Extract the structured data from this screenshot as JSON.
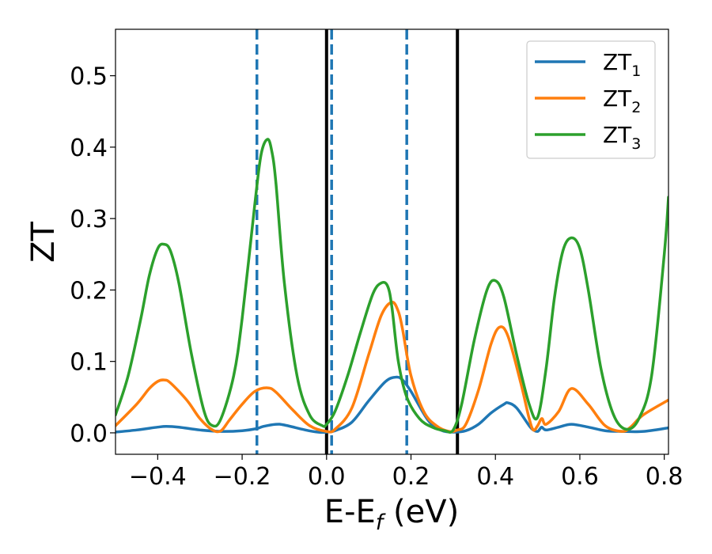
{
  "chart_data": {
    "type": "line",
    "title": "",
    "xlabel": "E-E",
    "xlabel_sub": "f",
    "xlabel_unit": " (eV)",
    "ylabel": "ZT",
    "xlim": [
      -0.5,
      0.81
    ],
    "ylim": [
      -0.03,
      0.565
    ],
    "xticks": [
      -0.4,
      -0.2,
      0.0,
      0.2,
      0.4,
      0.6,
      0.8
    ],
    "xtick_labels": [
      "−0.4",
      "−0.2",
      "0.0",
      "0.2",
      "0.4",
      "0.6",
      "0.8"
    ],
    "yticks": [
      0.0,
      0.1,
      0.2,
      0.3,
      0.4,
      0.5
    ],
    "ytick_labels": [
      "0.0",
      "0.1",
      "0.2",
      "0.3",
      "0.4",
      "0.5"
    ],
    "grid": false,
    "legend_position": "top-right",
    "vlines": [
      {
        "x": 0.0,
        "style": "solid",
        "color": "#000000"
      },
      {
        "x": 0.31,
        "style": "solid",
        "color": "#000000"
      },
      {
        "x": -0.165,
        "style": "dashed",
        "color": "#1f77b4"
      },
      {
        "x": 0.012,
        "style": "dashed",
        "color": "#1f77b4"
      },
      {
        "x": 0.19,
        "style": "dashed",
        "color": "#1f77b4"
      }
    ],
    "series": [
      {
        "name": "ZT",
        "sub": "1",
        "color": "#1f77b4",
        "x": [
          -0.5,
          -0.45,
          -0.4,
          -0.38,
          -0.35,
          -0.3,
          -0.25,
          -0.2,
          -0.165,
          -0.15,
          -0.12,
          -0.1,
          -0.05,
          -0.02,
          0.0,
          0.02,
          0.06,
          0.1,
          0.14,
          0.165,
          0.18,
          0.2,
          0.24,
          0.27,
          0.3,
          0.33,
          0.36,
          0.39,
          0.42,
          0.43,
          0.45,
          0.48,
          0.49,
          0.5,
          0.505,
          0.51,
          0.52,
          0.55,
          0.58,
          0.62,
          0.66,
          0.7,
          0.75,
          0.81
        ],
        "y": [
          0.001,
          0.004,
          0.008,
          0.009,
          0.008,
          0.004,
          0.002,
          0.003,
          0.006,
          0.009,
          0.012,
          0.011,
          0.004,
          0.001,
          0.001,
          0.003,
          0.015,
          0.045,
          0.072,
          0.078,
          0.074,
          0.058,
          0.018,
          0.004,
          0.001,
          0.003,
          0.012,
          0.028,
          0.04,
          0.042,
          0.035,
          0.01,
          0.004,
          0.002,
          0.005,
          0.008,
          0.004,
          0.008,
          0.012,
          0.008,
          0.003,
          0.002,
          0.002,
          0.007
        ]
      },
      {
        "name": "ZT",
        "sub": "2",
        "color": "#ff7f0e",
        "x": [
          -0.5,
          -0.45,
          -0.42,
          -0.4,
          -0.385,
          -0.37,
          -0.33,
          -0.3,
          -0.27,
          -0.25,
          -0.23,
          -0.2,
          -0.17,
          -0.14,
          -0.12,
          -0.08,
          -0.04,
          0.0,
          0.02,
          0.06,
          0.1,
          0.13,
          0.155,
          0.17,
          0.18,
          0.2,
          0.23,
          0.26,
          0.29,
          0.31,
          0.33,
          0.36,
          0.39,
          0.41,
          0.43,
          0.46,
          0.48,
          0.49,
          0.5,
          0.51,
          0.52,
          0.55,
          0.58,
          0.62,
          0.66,
          0.7,
          0.72,
          0.75,
          0.81
        ],
        "y": [
          0.01,
          0.04,
          0.062,
          0.072,
          0.074,
          0.07,
          0.045,
          0.02,
          0.004,
          0.003,
          0.018,
          0.04,
          0.058,
          0.063,
          0.057,
          0.032,
          0.01,
          0.002,
          0.005,
          0.035,
          0.11,
          0.165,
          0.183,
          0.17,
          0.145,
          0.08,
          0.03,
          0.01,
          0.002,
          0.004,
          0.012,
          0.06,
          0.125,
          0.148,
          0.135,
          0.07,
          0.02,
          0.004,
          0.01,
          0.02,
          0.012,
          0.03,
          0.062,
          0.04,
          0.01,
          0.002,
          0.008,
          0.025,
          0.046
        ]
      },
      {
        "name": "ZT",
        "sub": "3",
        "color": "#2ca02c",
        "x": [
          -0.5,
          -0.47,
          -0.44,
          -0.42,
          -0.4,
          -0.385,
          -0.37,
          -0.35,
          -0.32,
          -0.29,
          -0.27,
          -0.25,
          -0.22,
          -0.2,
          -0.17,
          -0.155,
          -0.14,
          -0.13,
          -0.12,
          -0.1,
          -0.07,
          -0.04,
          -0.01,
          0.0,
          0.02,
          0.05,
          0.08,
          0.11,
          0.13,
          0.145,
          0.155,
          0.17,
          0.19,
          0.22,
          0.25,
          0.28,
          0.3,
          0.32,
          0.35,
          0.38,
          0.4,
          0.42,
          0.45,
          0.48,
          0.5,
          0.52,
          0.54,
          0.56,
          0.58,
          0.6,
          0.62,
          0.65,
          0.68,
          0.71,
          0.74,
          0.77,
          0.8,
          0.81
        ],
        "y": [
          0.025,
          0.08,
          0.16,
          0.22,
          0.258,
          0.264,
          0.255,
          0.21,
          0.11,
          0.03,
          0.01,
          0.02,
          0.08,
          0.16,
          0.32,
          0.39,
          0.411,
          0.395,
          0.35,
          0.21,
          0.08,
          0.025,
          0.01,
          0.012,
          0.03,
          0.08,
          0.14,
          0.195,
          0.21,
          0.205,
          0.175,
          0.1,
          0.05,
          0.02,
          0.008,
          0.003,
          0.004,
          0.04,
          0.13,
          0.2,
          0.213,
          0.19,
          0.11,
          0.04,
          0.022,
          0.09,
          0.19,
          0.255,
          0.273,
          0.258,
          0.2,
          0.09,
          0.025,
          0.005,
          0.02,
          0.08,
          0.25,
          0.33
        ]
      }
    ]
  }
}
